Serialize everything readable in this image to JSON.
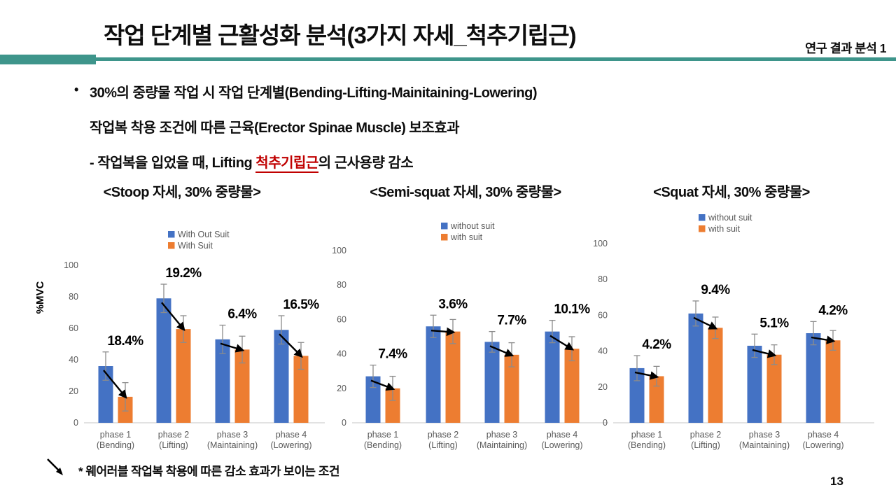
{
  "slide": {
    "title": "작업 단계별 근활성화 분석(3가지 자세_척추기립근)",
    "header_right": "연구 결과 분석 1",
    "page_number": "13",
    "accent_color": "#3E958B",
    "footnote": "* 웨어러블 작업복 착용에 따른 감소 효과가 보이는 조건"
  },
  "bullet": {
    "line1": "30%의 중량물 작업 시 작업 단계별(Bending-Lifting-Mainitaining-Lowering)",
    "line2": "작업복 착용 조건에 따른 근육(Erector Spinae Muscle) 보조효과",
    "line3_prefix": "- 작업복을 입었을 때, Lifting ",
    "line3_highlight": "척추기립근",
    "line3_suffix": "의 근사용량 감소",
    "highlight_color": "#C00000"
  },
  "colors": {
    "without_suit": "#4472C4",
    "with_suit": "#ED7D31",
    "axis_text": "#595959",
    "error_bar": "#8C8C8C",
    "axis_line": "#D9D9D9",
    "arrow": "#000000"
  },
  "chart_data": [
    {
      "type": "bar",
      "title": "<Stoop 자세, 30% 중량물>",
      "ylabel": "%MVC",
      "ylim": [
        0,
        100
      ],
      "yticks": [
        0,
        20,
        40,
        60,
        80,
        100
      ],
      "grid": false,
      "legend_position": "top",
      "categories": [
        [
          "phase 1",
          "(Bending)"
        ],
        [
          "phase 2",
          "(Lifting)"
        ],
        [
          "phase 3",
          "(Maintaining)"
        ],
        [
          "phase 4",
          "(Lowering)"
        ]
      ],
      "series": [
        {
          "name": "With Out Suit",
          "color": "#4472C4",
          "values": [
            36,
            79,
            53,
            59
          ],
          "errors": [
            9,
            9,
            9,
            9
          ]
        },
        {
          "name": "With Suit",
          "color": "#ED7D31",
          "values": [
            16.5,
            59.5,
            46.5,
            42.5
          ],
          "errors": [
            9,
            8.5,
            8.5,
            8.5
          ]
        }
      ],
      "reduction_labels": [
        "18.4%",
        "19.2%",
        "6.4%",
        "16.5%"
      ]
    },
    {
      "type": "bar",
      "title": "<Semi-squat 자세, 30% 중량물>",
      "ylabel": "",
      "ylim": [
        0,
        100
      ],
      "yticks": [
        0,
        20,
        40,
        60,
        80,
        100
      ],
      "grid": false,
      "legend_position": "top",
      "categories": [
        [
          "phase 1",
          "(Bending)"
        ],
        [
          "phase 2",
          "(Lifting)"
        ],
        [
          "phase 3",
          "(Maintaining)"
        ],
        [
          "phase 4",
          "(Lowering)"
        ]
      ],
      "series": [
        {
          "name": "without suit",
          "color": "#4472C4",
          "values": [
            27,
            56,
            47,
            53
          ],
          "errors": [
            6.5,
            6.5,
            6,
            6.5
          ]
        },
        {
          "name": "with suit",
          "color": "#ED7D31",
          "values": [
            20,
            53,
            39.5,
            43
          ],
          "errors": [
            7,
            7,
            7,
            7
          ]
        }
      ],
      "reduction_labels": [
        "7.4%",
        "3.6%",
        "7.7%",
        "10.1%"
      ]
    },
    {
      "type": "bar",
      "title": "<Squat 자세, 30% 중량물>",
      "ylabel": "",
      "ylim": [
        0,
        100
      ],
      "yticks": [
        0,
        20,
        40,
        60,
        80,
        100
      ],
      "grid": false,
      "legend_position": "top",
      "categories": [
        [
          "phase 1",
          "(Bending)"
        ],
        [
          "phase 2",
          "(Lifting)"
        ],
        [
          "phase 3",
          "(Maintaining)"
        ],
        [
          "phase 4",
          "(Lowering)"
        ]
      ],
      "series": [
        {
          "name": "without suit",
          "color": "#4472C4",
          "values": [
            30.5,
            61,
            43,
            50
          ],
          "errors": [
            7,
            7,
            6.5,
            6.5
          ]
        },
        {
          "name": "with suit",
          "color": "#ED7D31",
          "values": [
            26,
            53,
            38,
            46
          ],
          "errors": [
            5.5,
            6,
            5.5,
            5.5
          ]
        }
      ],
      "reduction_labels": [
        "4.2%",
        "9.4%",
        "5.1%",
        "4.2%"
      ]
    }
  ]
}
